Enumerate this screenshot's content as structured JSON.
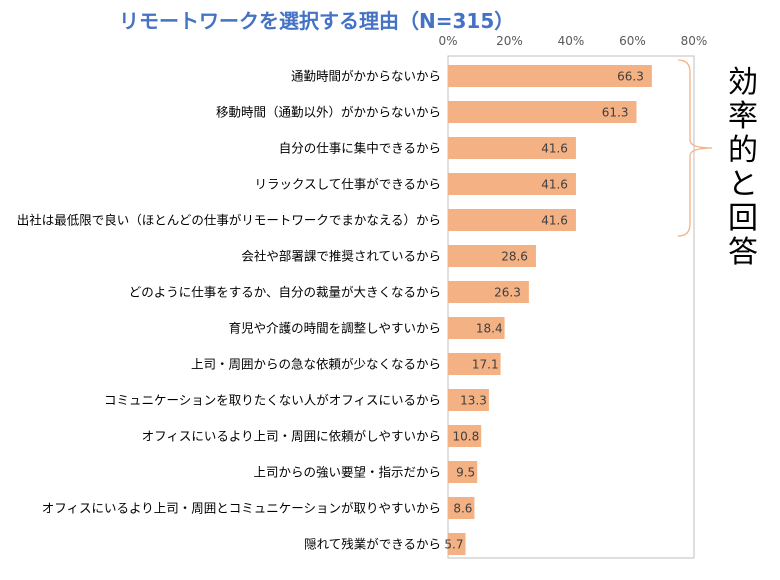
{
  "chart_data": {
    "type": "bar",
    "orientation": "horizontal",
    "title": "リモートワークを選択する理由（N=315）",
    "categories": [
      "通勤時間がかからないから",
      "移動時間（通勤以外）がかからないから",
      "自分の仕事に集中できるから",
      "リラックスして仕事ができるから",
      "出社は最低限で良い（ほとんどの仕事がリモートワークでまかなえる）から",
      "会社や部署課で推奨されているから",
      "どのように仕事をするか、自分の裁量が大きくなるから",
      "育児や介護の時間を調整しやすいから",
      "上司・周囲からの急な依頼が少なくなるから",
      "コミュニケーションを取りたくない人がオフィスにいるから",
      "オフィスにいるより上司・周囲に依頼がしやすいから",
      "上司からの強い要望・指示だから",
      "オフィスにいるより上司・周囲とコミュニケーションが取りやすいから",
      "隠れて残業ができるから"
    ],
    "values": [
      66.3,
      61.3,
      41.6,
      41.6,
      41.6,
      28.6,
      26.3,
      18.4,
      17.1,
      13.3,
      10.8,
      9.5,
      8.6,
      5.7
    ],
    "value_labels": [
      "66.3",
      "61.3",
      "41.6",
      "41.6",
      "41.6",
      "28.6",
      "26.3",
      "18.4",
      "17.1",
      "13.3",
      "10.8",
      "9.5",
      "8.6",
      "5.7"
    ],
    "xlim": [
      0,
      80
    ],
    "ticks": [
      "0%",
      "20%",
      "40%",
      "60%",
      "80%"
    ],
    "tick_values": [
      0,
      20,
      40,
      60,
      80
    ],
    "grid": false,
    "bar_color": "#F4B183",
    "title_color": "#4472C4",
    "annotation": {
      "text": "効率的と回答",
      "bracket_color": "#F4B183",
      "covers_first_n": 5
    }
  }
}
